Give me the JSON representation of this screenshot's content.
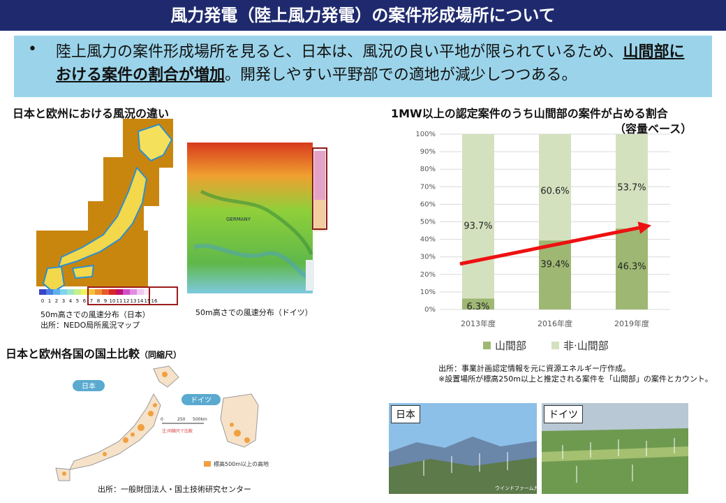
{
  "title": "風力発電（陸上風力発電）の案件形成場所について",
  "bullet": {
    "marker": "•",
    "text_before": "陸上風力の案件形成場所を見ると、日本は、風況の良い平地が限られているため、",
    "text_bold": "山間部における案件の割合が増加",
    "text_after": "。開発しやすい平野部での適地が減少しつつある。"
  },
  "wind_section": {
    "heading": "日本と欧州における風況の違い",
    "japan_caption_1": "50m高さでの風速分布（日本）",
    "japan_caption_2": "出所：NEDO局所風況マップ",
    "germany_caption": "50m高さでの風速分布（ドイツ）",
    "germany_map_label": "GERMANY",
    "scale_ticks": [
      "0",
      "1",
      "2",
      "3",
      "4",
      "5",
      "6",
      "7",
      "8",
      "9",
      "10",
      "11",
      "12",
      "13",
      "14",
      "15",
      "16"
    ]
  },
  "land_section": {
    "heading": "日本と欧州各国の国土比較",
    "heading_small": "（同縮尺）",
    "japan_label": "日本",
    "germany_label": "ドイツ",
    "scale_labels": [
      "0",
      "250",
      "500km"
    ],
    "scale_note": "注:同縮尺で比較",
    "legend": "標高500m以上の高地",
    "source": "出所：一般財団法人・国土技術研究センター"
  },
  "chart_section": {
    "heading_line1": "1MW以上の認定案件のうち山間部の案件が占める割合",
    "heading_line2": "（容量ベース）",
    "source_1": "出所：事業計画認定情報を元に資源エネルギー庁作成。",
    "source_2": "※設置場所が標高250m以上と推定される案件を「山間部」の案件とカウント。"
  },
  "chart_data": {
    "type": "bar",
    "stacked": true,
    "title": "1MW以上の認定案件のうち山間部の案件が占める割合（容量ベース）",
    "categories": [
      "2013年度",
      "2016年度",
      "2019年度"
    ],
    "series": [
      {
        "name": "山間部",
        "values": [
          6.3,
          39.4,
          46.3
        ],
        "labels": [
          "6.3%",
          "39.4%",
          "46.3%"
        ],
        "color": "#9eb873"
      },
      {
        "name": "非·山間部",
        "values": [
          93.7,
          60.6,
          53.7
        ],
        "labels": [
          "93.7%",
          "60.6%",
          "53.7%"
        ],
        "color": "#d4e1bf"
      }
    ],
    "yticks": [
      "0%",
      "10%",
      "20%",
      "30%",
      "40%",
      "50%",
      "60%",
      "70%",
      "80%",
      "90%",
      "100%"
    ],
    "ylim": [
      0,
      100
    ],
    "grid": true,
    "legend_position": "bottom",
    "trend_arrow_color": "#ee1111"
  },
  "photos": [
    {
      "label": "日本",
      "credit": "ウインドファーム九州"
    },
    {
      "label": "ドイツ"
    }
  ]
}
